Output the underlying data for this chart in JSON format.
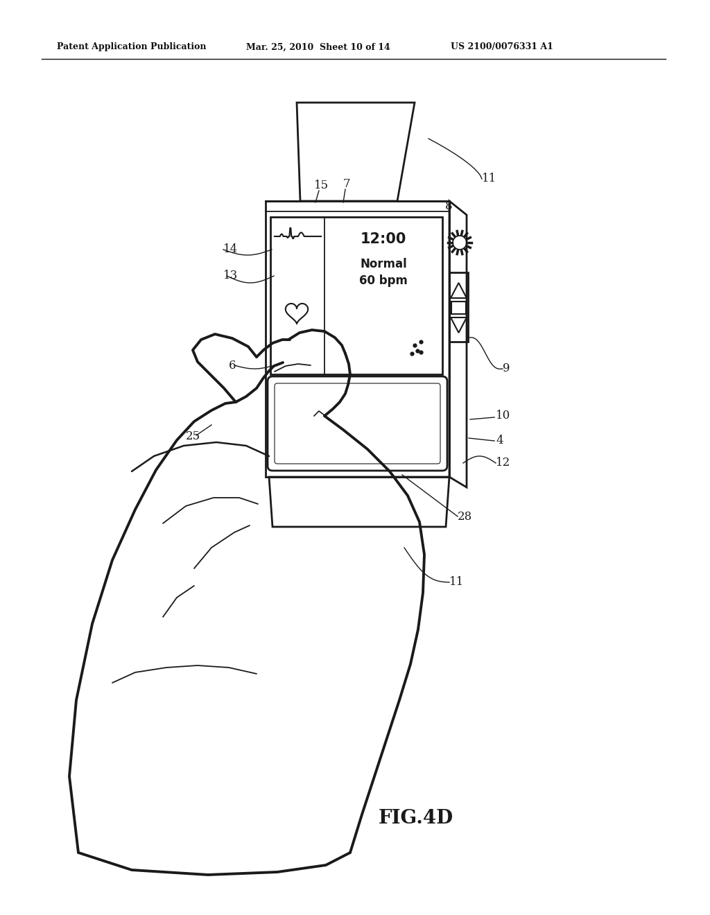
{
  "bg_color": "#ffffff",
  "header_left": "Patent Application Publication",
  "header_mid": "Mar. 25, 2010  Sheet 10 of 14",
  "header_right": "US 2100/0076331 A1",
  "fig_label": "FIG.4D",
  "display_time": "12:00",
  "display_normal": "Normal",
  "display_bpm": "60 bpm"
}
